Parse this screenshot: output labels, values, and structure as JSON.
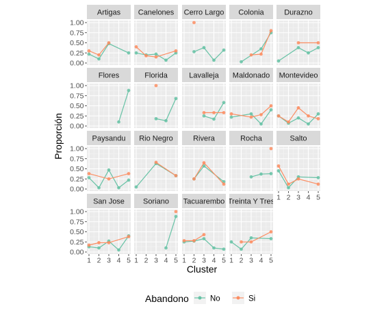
{
  "chart_data": {
    "type": "line",
    "xlabel": "Cluster",
    "ylabel": "Proporción",
    "x_ticks": [
      "1",
      "2",
      "3",
      "4",
      "5"
    ],
    "y_ticks": [
      "0.00",
      "0.25",
      "0.50",
      "0.75",
      "1.00"
    ],
    "xlim": [
      1,
      5
    ],
    "ylim": [
      0,
      1
    ],
    "grid": true,
    "legend": {
      "title": "Abandono",
      "placement": "bottom",
      "entries": [
        {
          "name": "No",
          "color": "#66c2a5"
        },
        {
          "name": "Si",
          "color": "#fc8d62"
        }
      ]
    },
    "panels": [
      {
        "name": "Artigas",
        "series": [
          {
            "name": "No",
            "points": [
              [
                1,
                0.22
              ],
              [
                2,
                0.1
              ],
              [
                3,
                0.48
              ],
              [
                5,
                0.25
              ]
            ]
          },
          {
            "name": "Si",
            "points": [
              [
                1,
                0.3
              ],
              [
                2,
                0.2
              ],
              [
                3,
                0.5
              ]
            ]
          }
        ]
      },
      {
        "name": "Canelones",
        "series": [
          {
            "name": "No",
            "points": [
              [
                1,
                0.25
              ],
              [
                2,
                0.2
              ],
              [
                3,
                0.22
              ],
              [
                4,
                0.07
              ],
              [
                5,
                0.25
              ]
            ]
          },
          {
            "name": "Si",
            "points": [
              [
                1,
                0.4
              ],
              [
                2,
                0.18
              ],
              [
                3,
                0.15
              ],
              [
                5,
                0.3
              ]
            ]
          }
        ]
      },
      {
        "name": "Cerro Largo",
        "series": [
          {
            "name": "No",
            "points": [
              [
                2,
                0.28
              ],
              [
                3,
                0.38
              ],
              [
                4,
                0.07
              ],
              [
                5,
                0.32
              ]
            ]
          },
          {
            "name": "Si",
            "points": [
              [
                2,
                1.0
              ]
            ]
          }
        ]
      },
      {
        "name": "Colonia",
        "series": [
          {
            "name": "No",
            "points": [
              [
                2,
                0.03
              ],
              [
                4,
                0.35
              ],
              [
                5,
                0.75
              ]
            ]
          },
          {
            "name": "Si",
            "points": [
              [
                3,
                0.2
              ],
              [
                4,
                0.22
              ],
              [
                5,
                0.8
              ]
            ]
          }
        ]
      },
      {
        "name": "Durazno",
        "series": [
          {
            "name": "No",
            "points": [
              [
                1,
                0.05
              ],
              [
                3,
                0.38
              ],
              [
                4,
                0.25
              ],
              [
                5,
                0.38
              ]
            ]
          },
          {
            "name": "Si",
            "points": [
              [
                3,
                0.5
              ],
              [
                5,
                0.5
              ]
            ]
          }
        ]
      },
      {
        "name": "Flores",
        "series": [
          {
            "name": "No",
            "points": [
              [
                4,
                0.1
              ],
              [
                5,
                0.88
              ]
            ]
          },
          {
            "name": "Si",
            "points": []
          }
        ]
      },
      {
        "name": "Florida",
        "series": [
          {
            "name": "No",
            "points": [
              [
                3,
                0.18
              ],
              [
                4,
                0.13
              ],
              [
                5,
                0.68
              ]
            ]
          },
          {
            "name": "Si",
            "points": [
              [
                3,
                1.0
              ]
            ]
          }
        ]
      },
      {
        "name": "Lavalleja",
        "series": [
          {
            "name": "No",
            "points": [
              [
                3,
                0.25
              ],
              [
                4,
                0.17
              ],
              [
                5,
                0.58
              ]
            ]
          },
          {
            "name": "Si",
            "points": [
              [
                3,
                0.33
              ],
              [
                4,
                0.33
              ],
              [
                5,
                0.33
              ]
            ]
          }
        ]
      },
      {
        "name": "Maldonado",
        "series": [
          {
            "name": "No",
            "points": [
              [
                1,
                0.22
              ],
              [
                3,
                0.3
              ],
              [
                4,
                0.05
              ],
              [
                5,
                0.4
              ]
            ]
          },
          {
            "name": "Si",
            "points": [
              [
                1,
                0.3
              ],
              [
                3,
                0.22
              ],
              [
                4,
                0.28
              ],
              [
                5,
                0.5
              ]
            ]
          }
        ]
      },
      {
        "name": "Montevideo",
        "series": [
          {
            "name": "No",
            "points": [
              [
                1,
                0.25
              ],
              [
                2,
                0.07
              ],
              [
                3,
                0.2
              ],
              [
                4,
                0.05
              ],
              [
                5,
                0.3
              ]
            ]
          },
          {
            "name": "Si",
            "points": [
              [
                1,
                0.25
              ],
              [
                2,
                0.1
              ],
              [
                3,
                0.45
              ],
              [
                4,
                0.25
              ],
              [
                5,
                0.18
              ]
            ]
          }
        ]
      },
      {
        "name": "Paysandu",
        "series": [
          {
            "name": "No",
            "points": [
              [
                1,
                0.28
              ],
              [
                2,
                0.03
              ],
              [
                3,
                0.47
              ],
              [
                4,
                0.03
              ],
              [
                5,
                0.22
              ]
            ]
          },
          {
            "name": "Si",
            "points": [
              [
                1,
                0.38
              ],
              [
                3,
                0.25
              ],
              [
                5,
                0.38
              ]
            ]
          }
        ]
      },
      {
        "name": "Rio Negro",
        "series": [
          {
            "name": "No",
            "points": [
              [
                1,
                0.05
              ],
              [
                3,
                0.63
              ],
              [
                5,
                0.33
              ]
            ]
          },
          {
            "name": "Si",
            "points": [
              [
                3,
                0.66
              ],
              [
                5,
                0.33
              ]
            ]
          }
        ]
      },
      {
        "name": "Rivera",
        "series": [
          {
            "name": "No",
            "points": [
              [
                2,
                0.25
              ],
              [
                3,
                0.57
              ],
              [
                5,
                0.18
              ]
            ]
          },
          {
            "name": "Si",
            "points": [
              [
                2,
                0.25
              ],
              [
                3,
                0.65
              ],
              [
                5,
                0.12
              ]
            ]
          }
        ]
      },
      {
        "name": "Rocha",
        "series": [
          {
            "name": "No",
            "points": [
              [
                3,
                0.3
              ],
              [
                4,
                0.37
              ],
              [
                5,
                0.38
              ]
            ]
          },
          {
            "name": "Si",
            "points": [
              [
                5,
                1.0
              ]
            ]
          }
        ]
      },
      {
        "name": "Salto",
        "series": [
          {
            "name": "No",
            "points": [
              [
                1,
                0.45
              ],
              [
                2,
                0.03
              ],
              [
                3,
                0.3
              ],
              [
                5,
                0.28
              ]
            ]
          },
          {
            "name": "Si",
            "points": [
              [
                1,
                0.57
              ],
              [
                2,
                0.12
              ],
              [
                3,
                0.25
              ],
              [
                5,
                0.12
              ]
            ]
          }
        ]
      },
      {
        "name": "San Jose",
        "series": [
          {
            "name": "No",
            "points": [
              [
                1,
                0.13
              ],
              [
                2,
                0.1
              ],
              [
                3,
                0.27
              ],
              [
                4,
                0.05
              ],
              [
                5,
                0.4
              ]
            ]
          },
          {
            "name": "Si",
            "points": [
              [
                1,
                0.17
              ],
              [
                2,
                0.23
              ],
              [
                3,
                0.23
              ],
              [
                5,
                0.38
              ]
            ]
          }
        ]
      },
      {
        "name": "Soriano",
        "series": [
          {
            "name": "No",
            "points": [
              [
                4,
                0.1
              ],
              [
                5,
                0.88
              ]
            ]
          },
          {
            "name": "Si",
            "points": [
              [
                5,
                1.0
              ]
            ]
          }
        ]
      },
      {
        "name": "Tacuarembo",
        "series": [
          {
            "name": "No",
            "points": [
              [
                1,
                0.25
              ],
              [
                2,
                0.27
              ],
              [
                3,
                0.33
              ],
              [
                4,
                0.1
              ],
              [
                5,
                0.07
              ]
            ]
          },
          {
            "name": "Si",
            "points": [
              [
                1,
                0.28
              ],
              [
                2,
                0.28
              ],
              [
                3,
                0.43
              ]
            ]
          }
        ]
      },
      {
        "name": "Treinta Y Tres",
        "series": [
          {
            "name": "No",
            "points": [
              [
                1,
                0.25
              ],
              [
                2,
                0.07
              ],
              [
                3,
                0.35
              ],
              [
                5,
                0.33
              ]
            ]
          },
          {
            "name": "Si",
            "points": [
              [
                2,
                0.25
              ],
              [
                3,
                0.25
              ],
              [
                5,
                0.5
              ]
            ]
          }
        ]
      }
    ]
  }
}
